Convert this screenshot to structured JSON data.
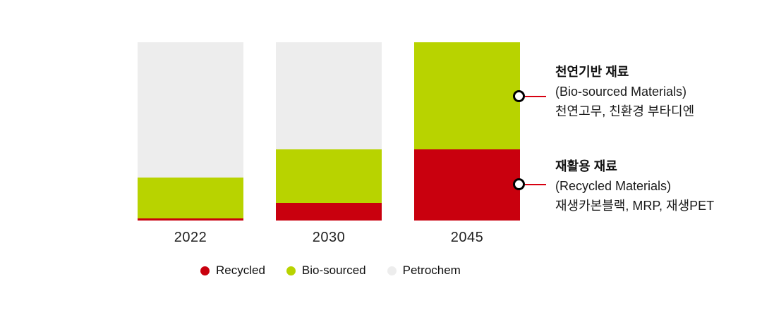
{
  "chart_data": {
    "type": "bar",
    "stacked": true,
    "title": "",
    "categories": [
      "2022",
      "2030",
      "2045"
    ],
    "series": [
      {
        "name": "Recycled",
        "color": "#c9000e",
        "values": [
          1,
          10,
          40
        ]
      },
      {
        "name": "Bio-sourced",
        "color": "#b8d300",
        "values": [
          23,
          30,
          60
        ]
      },
      {
        "name": "Petrochem",
        "color": "#ededed",
        "values": [
          76,
          60,
          0
        ]
      }
    ],
    "value_unit": "percent of bar height",
    "ylim": [
      0,
      100
    ],
    "grid": false,
    "axis_lines": false,
    "legend_position": "bottom"
  },
  "legend": {
    "items": [
      {
        "label": "Recycled",
        "color": "#c9000e"
      },
      {
        "label": "Bio-sourced",
        "color": "#b8d300"
      },
      {
        "label": "Petrochem",
        "color": "#ededed"
      }
    ]
  },
  "annotations": [
    {
      "title": "천연기반 재료",
      "subtitle": "(Bio-sourced Materials)",
      "detail": "천연고무, 친환경 부타디엔",
      "points_to": "2045 bio-sourced segment"
    },
    {
      "title": "재활용 재료",
      "subtitle": "(Recycled Materials)",
      "detail": "재생카본블랙, MRP, 재생PET",
      "points_to": "2045 recycled segment"
    }
  ],
  "colors": {
    "recycled": "#c9000e",
    "bio_sourced": "#b8d300",
    "petrochem": "#ededed",
    "connector_line": "#d70011",
    "text": "#1a1a1a",
    "background": "#ffffff"
  }
}
